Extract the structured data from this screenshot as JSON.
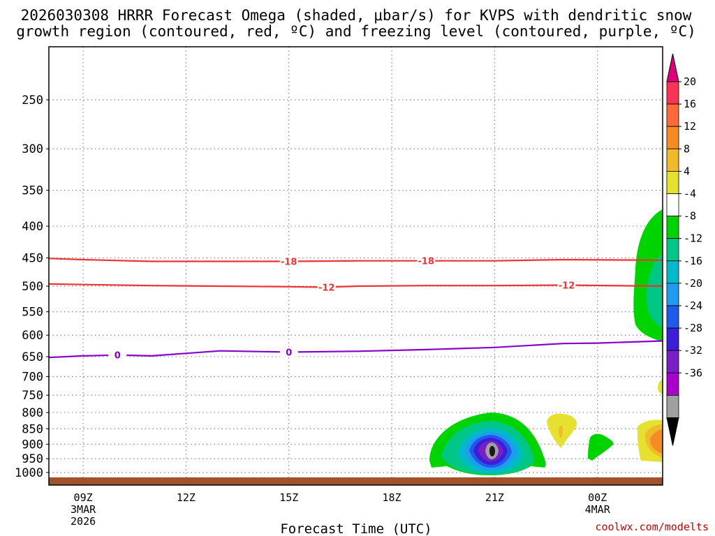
{
  "chart_data": {
    "type": "contour",
    "title_line1": "2026030308 HRRR Forecast Omega (shaded, μbar/s) for KVPS with dendritic snow",
    "title_line2": "growth region (contoured, red, ºC) and freezing level (contoured, purple, ºC)",
    "xlabel": "Forecast Time (UTC)",
    "credit": "coolwx.com/modelts",
    "x_ticks": [
      {
        "hour": 9,
        "label": "09Z",
        "sub1": "3MAR",
        "sub2": "2026"
      },
      {
        "hour": 12,
        "label": "12Z",
        "sub1": "",
        "sub2": ""
      },
      {
        "hour": 15,
        "label": "15Z",
        "sub1": "",
        "sub2": ""
      },
      {
        "hour": 18,
        "label": "18Z",
        "sub1": "",
        "sub2": ""
      },
      {
        "hour": 21,
        "label": "21Z",
        "sub1": "",
        "sub2": ""
      },
      {
        "hour": 24,
        "label": "00Z",
        "sub1": "4MAR",
        "sub2": ""
      }
    ],
    "x_range_hours": [
      8,
      25.9
    ],
    "y_ticks": [
      250,
      300,
      350,
      400,
      450,
      500,
      550,
      600,
      650,
      700,
      750,
      800,
      850,
      900,
      950,
      1000
    ],
    "y_range_hpa": [
      200,
      1020
    ],
    "colorbar": {
      "levels": [
        "20",
        "16",
        "12",
        "8",
        "4",
        "-4",
        "-8",
        "-12",
        "-16",
        "-20",
        "-24",
        "-28",
        "-32",
        "-36"
      ],
      "colors": [
        "#ff3355",
        "#ff6a3a",
        "#f58b22",
        "#f0bb2a",
        "#e6e02e",
        "#ffffff",
        "#00d400",
        "#00c785",
        "#00b9c9",
        "#1f9cf0",
        "#1f5ae8",
        "#3a1ed8",
        "#7a1ec8",
        "#aa00cc",
        "#a0a0a0"
      ],
      "top_arrow_color": "#e0007a",
      "bottom_arrow_color": "#000000"
    },
    "contours": [
      {
        "name": "dgz-minus18",
        "value": -18,
        "color": "#ee3333",
        "label": "-18",
        "points": [
          [
            8.0,
            451
          ],
          [
            9.0,
            453
          ],
          [
            11.0,
            456
          ],
          [
            13.0,
            456
          ],
          [
            15.0,
            456
          ],
          [
            17.0,
            455
          ],
          [
            19.0,
            455
          ],
          [
            21.0,
            455
          ],
          [
            23.0,
            453
          ],
          [
            25.9,
            454
          ]
        ],
        "label_hours": [
          15.0,
          19.0
        ]
      },
      {
        "name": "dgz-minus12",
        "value": -12,
        "color": "#ee3333",
        "label": "-12",
        "points": [
          [
            8.0,
            496
          ],
          [
            9.0,
            497
          ],
          [
            11.0,
            499
          ],
          [
            13.0,
            500
          ],
          [
            15.0,
            501
          ],
          [
            16.0,
            502
          ],
          [
            17.0,
            500
          ],
          [
            19.0,
            499
          ],
          [
            21.0,
            499
          ],
          [
            23.0,
            498
          ],
          [
            25.9,
            500
          ]
        ],
        "label_hours": [
          16.1,
          23.1
        ]
      },
      {
        "name": "freezing-level",
        "value": 0,
        "color": "#8800cc",
        "label": "0",
        "points": [
          [
            8.0,
            652
          ],
          [
            9.0,
            648
          ],
          [
            10.0,
            646
          ],
          [
            11.0,
            648
          ],
          [
            12.0,
            642
          ],
          [
            13.0,
            636
          ],
          [
            15.0,
            639
          ],
          [
            17.0,
            637
          ],
          [
            19.0,
            633
          ],
          [
            21.0,
            628
          ],
          [
            23.0,
            619
          ],
          [
            24.0,
            618
          ],
          [
            25.9,
            613
          ]
        ],
        "label_hours": [
          10.0,
          15.0
        ]
      }
    ],
    "omega_features": [
      {
        "name": "omega-max-21z",
        "center_hour": 21.0,
        "center_hpa": 910,
        "min_value": -36
      },
      {
        "name": "omega-east-mid",
        "center_hour": 25.8,
        "center_hpa": 470,
        "min_value": -12
      },
      {
        "name": "omega-pos-2330",
        "center_hour": 23.4,
        "center_hpa": 860,
        "max_value": 8
      },
      {
        "name": "omega-neg-2400",
        "center_hour": 24.0,
        "center_hpa": 900,
        "min_value": -4
      },
      {
        "name": "omega-pos-east",
        "center_hour": 25.8,
        "center_hpa": 900,
        "max_value": 16
      }
    ]
  }
}
